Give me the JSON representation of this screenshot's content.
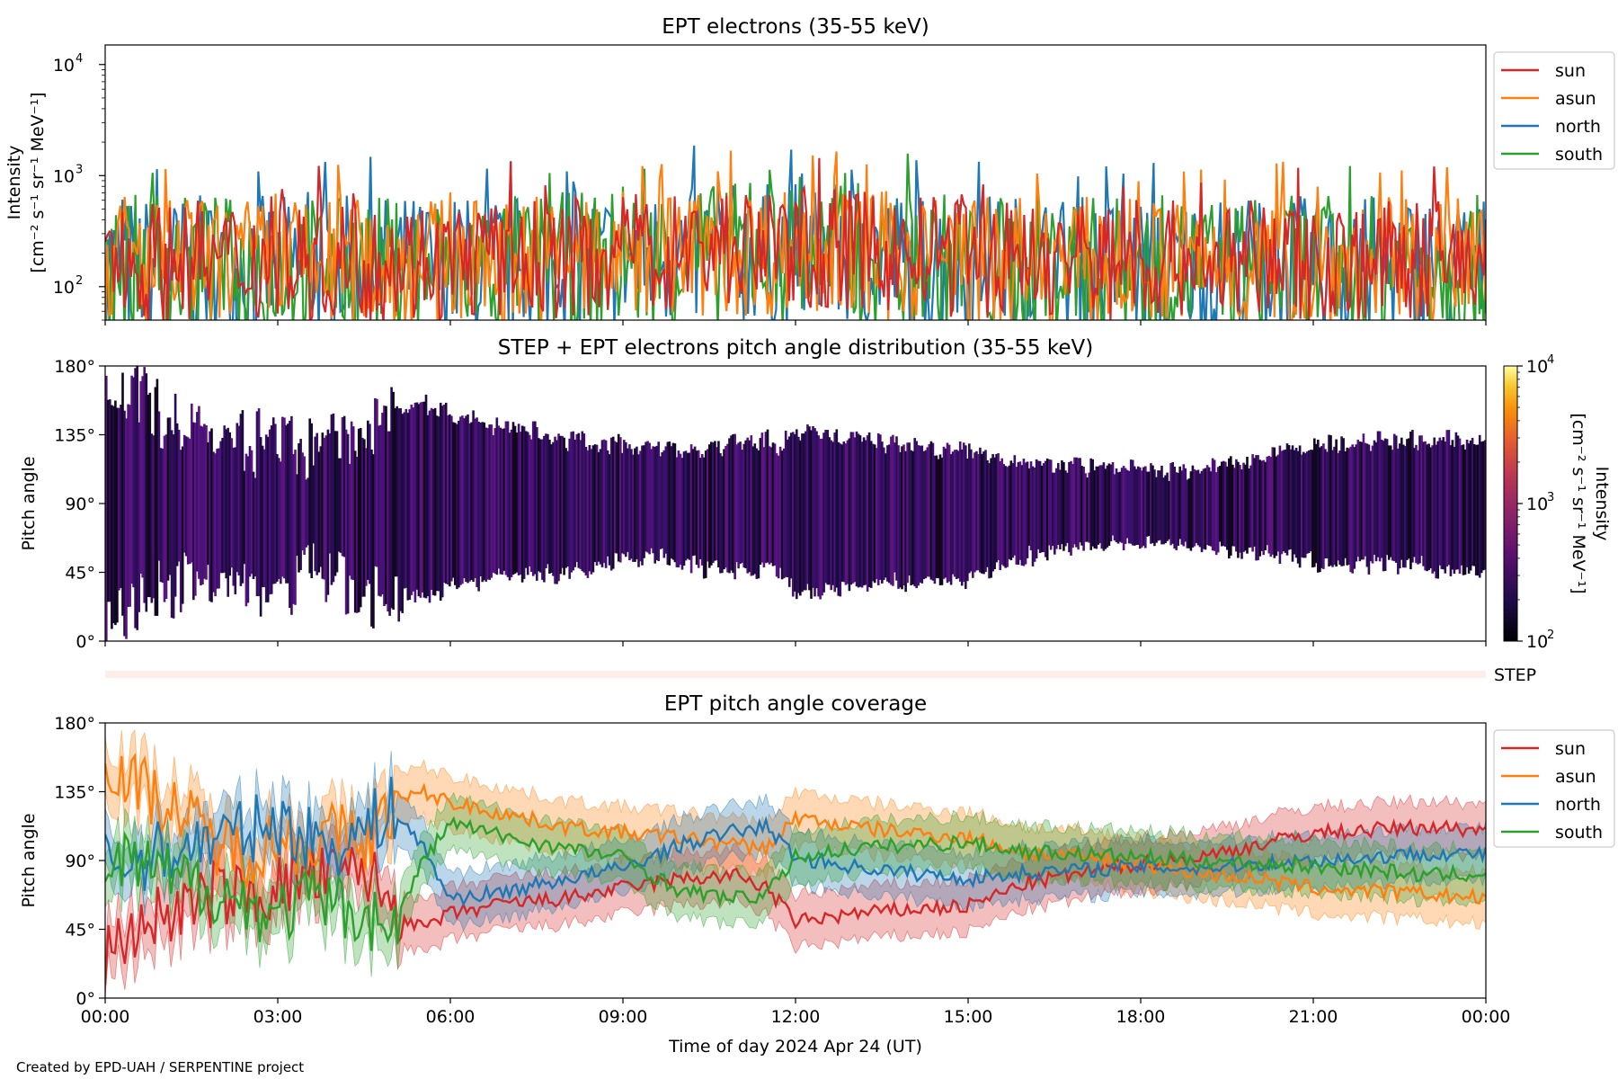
{
  "figure": {
    "credit": "Created by EPD-UAH / SERPENTINE project",
    "xlabel": "Time of day 2024 Apr 24 (UT)",
    "xticks": [
      "00:00",
      "03:00",
      "06:00",
      "09:00",
      "12:00",
      "15:00",
      "18:00",
      "21:00",
      "00:00"
    ]
  },
  "colors": {
    "sun": "#d62728",
    "asun": "#ff7f0e",
    "north": "#1f77b4",
    "south": "#2ca02c"
  },
  "chart_data": [
    {
      "type": "line",
      "title": "EPT electrons (35-55 keV)",
      "ylabel_line1": "Intensity",
      "ylabel_line2": "[cm⁻² s⁻¹ sr⁻¹ MeV⁻¹]",
      "yscale": "log",
      "ylim": [
        50,
        15000
      ],
      "yticks": [
        {
          "value": 100,
          "base": "10",
          "exp": "2"
        },
        {
          "value": 1000,
          "base": "10",
          "exp": "3"
        },
        {
          "value": 10000,
          "base": "10",
          "exp": "4"
        }
      ],
      "xlim_hours": [
        0,
        24
      ],
      "legend": [
        "sun",
        "asun",
        "north",
        "south"
      ],
      "legend_position": "outside-right",
      "series": [
        {
          "name": "sun",
          "baseline": 170,
          "spread": 0.55
        },
        {
          "name": "asun",
          "baseline": 160,
          "spread": 0.6
        },
        {
          "name": "north",
          "baseline": 150,
          "spread": 0.65
        },
        {
          "name": "south",
          "baseline": 150,
          "spread": 0.65
        }
      ]
    },
    {
      "type": "heatmap",
      "title": "STEP + EPT electrons pitch angle distribution (35-55 keV)",
      "ylabel": "Pitch angle",
      "ylim": [
        0,
        180
      ],
      "yticks": [
        "0°",
        "45°",
        "90°",
        "135°",
        "180°"
      ],
      "colorbar": {
        "label_line1": "Intensity",
        "label_line2": "[cm⁻² s⁻¹ sr⁻¹ MeV⁻¹]",
        "scale": "log",
        "range": [
          100,
          10000
        ],
        "ticks": [
          {
            "base": "10",
            "exp": "2"
          },
          {
            "base": "10",
            "exp": "3"
          },
          {
            "base": "10",
            "exp": "4"
          }
        ],
        "colormap": "inferno"
      }
    },
    {
      "type": "line",
      "title": "",
      "label": "STEP"
    },
    {
      "type": "area",
      "title": "EPT pitch angle coverage",
      "ylabel": "Pitch angle",
      "ylim": [
        0,
        180
      ],
      "yticks": [
        "0°",
        "45°",
        "90°",
        "135°",
        "180°"
      ],
      "xlim_hours": [
        0,
        24
      ],
      "legend": [
        "sun",
        "asun",
        "north",
        "south"
      ],
      "legend_position": "outside-right",
      "series": [
        {
          "name": "sun",
          "hours": [
            0,
            0.5,
            1,
            1.5,
            2,
            2.5,
            3,
            3.5,
            4,
            4.5,
            5,
            5.5,
            6,
            7,
            8,
            9,
            10,
            11,
            11.5,
            12,
            13,
            14,
            15,
            16,
            17,
            18,
            19,
            20,
            21,
            22,
            23,
            24
          ],
          "pitch": [
            25,
            45,
            55,
            60,
            70,
            65,
            72,
            80,
            78,
            85,
            60,
            45,
            55,
            62,
            65,
            72,
            78,
            80,
            72,
            50,
            55,
            58,
            60,
            75,
            82,
            88,
            92,
            100,
            108,
            110,
            112,
            110
          ]
        },
        {
          "name": "asun",
          "hours": [
            0,
            0.5,
            1,
            1.5,
            2,
            2.5,
            3,
            3.5,
            4,
            4.5,
            5,
            5.5,
            6,
            7,
            8,
            9,
            10,
            11,
            11.5,
            12,
            13,
            14,
            15,
            16,
            17,
            18,
            19,
            20,
            21,
            22,
            23,
            24
          ],
          "pitch": [
            160,
            140,
            130,
            115,
            100,
            95,
            105,
            100,
            108,
            102,
            125,
            135,
            128,
            120,
            112,
            108,
            105,
            100,
            98,
            118,
            112,
            108,
            105,
            95,
            92,
            88,
            82,
            78,
            72,
            70,
            68,
            65
          ]
        },
        {
          "name": "north",
          "hours": [
            0,
            0.5,
            1,
            1.5,
            2,
            2.5,
            3,
            3.5,
            4,
            4.5,
            5,
            5.5,
            6,
            7,
            8,
            9,
            10,
            11,
            11.5,
            12,
            13,
            14,
            15,
            16,
            17,
            18,
            19,
            20,
            21,
            22,
            23,
            24
          ],
          "pitch": [
            88,
            90,
            95,
            100,
            105,
            110,
            115,
            105,
            100,
            110,
            125,
            100,
            65,
            70,
            78,
            85,
            100,
            110,
            112,
            92,
            86,
            82,
            78,
            82,
            84,
            86,
            85,
            88,
            90,
            92,
            95,
            94
          ]
        },
        {
          "name": "south",
          "hours": [
            0,
            0.5,
            1,
            1.5,
            2,
            2.5,
            3,
            3.5,
            4,
            4.5,
            5,
            5.5,
            6,
            7,
            8,
            9,
            10,
            11,
            11.5,
            12,
            13,
            14,
            15,
            16,
            17,
            18,
            19,
            20,
            21,
            22,
            23,
            24
          ],
          "pitch": [
            85,
            88,
            80,
            75,
            70,
            60,
            55,
            65,
            60,
            55,
            45,
            88,
            115,
            105,
            98,
            92,
            70,
            65,
            68,
            92,
            98,
            100,
            102,
            96,
            94,
            92,
            90,
            88,
            86,
            84,
            80,
            82
          ]
        }
      ]
    }
  ]
}
